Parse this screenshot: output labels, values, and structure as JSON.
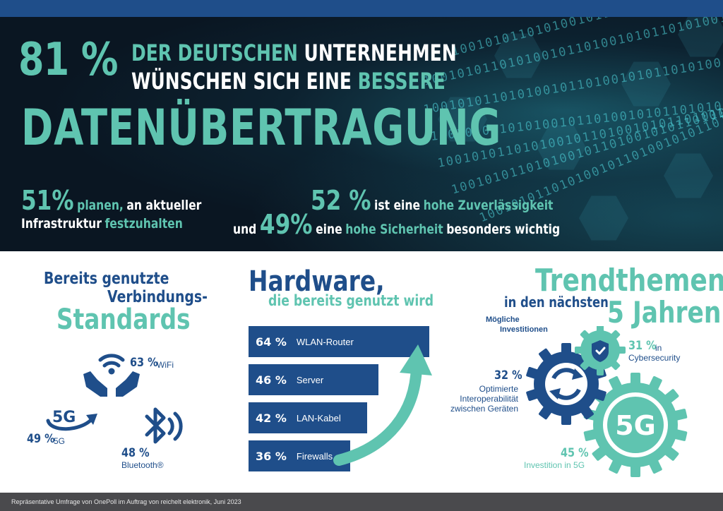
{
  "hero": {
    "big_percent": "81 %",
    "line1_a": "DER DEUTSCHEN",
    "line1_b": "UNTERNEHMEN",
    "line2_a": "WÜNSCHEN SICH EINE",
    "line2_b": "BESSERE",
    "line3": "DATENÜBERTRAGUNG",
    "binary_text": "1001010110101001011010010101101010010110100101",
    "stat_left": {
      "percent": "51%",
      "text_a": "planen,",
      "text_b": "an aktueller",
      "text_c": "Infrastruktur",
      "text_d": "festzuhalten"
    },
    "stat_right": {
      "percent_1": "52 %",
      "text_1a": "ist eine",
      "text_1b": "hohe Zuverlässigkeit",
      "prefix_2": "und",
      "percent_2": "49%",
      "text_2a": "eine",
      "text_2b": "hohe Sicherheit",
      "text_2c": "besonders wichtig"
    }
  },
  "standards": {
    "title_a": "Bereits genutzte",
    "title_b": "Verbindungs-",
    "title_c": "Standards",
    "wifi": {
      "percent": "63 %",
      "label": "WiFi"
    },
    "fiveg": {
      "icon_text": "5G",
      "percent": "49 %",
      "label": "5G"
    },
    "bluetooth": {
      "percent": "48 %",
      "label": "Bluetooth®"
    }
  },
  "hardware": {
    "title": "Hardware,",
    "subtitle": "die bereits genutzt wird",
    "bars": [
      {
        "percent": "64 %",
        "label": "WLAN-Router",
        "value": 64
      },
      {
        "percent": "46 %",
        "label": "Server",
        "value": 46
      },
      {
        "percent": "42 %",
        "label": "LAN-Kabel",
        "value": 42
      },
      {
        "percent": "36 %",
        "label": "Firewalls",
        "value": 36
      }
    ]
  },
  "trends": {
    "title": "Trendthemen",
    "sub_a": "in den nächsten",
    "sub_b": "5 Jahren",
    "small_a": "Mögliche",
    "small_b": "Investitionen",
    "cyber": {
      "percent": "31 %",
      "label_a": "in",
      "label_b": "Cybersecurity"
    },
    "interop": {
      "percent": "32 %",
      "label_a": "Optimierte",
      "label_b": "Interoperabilität",
      "label_c": "zwischen Geräten"
    },
    "fiveg": {
      "icon_text": "5G",
      "percent": "45 %",
      "label": "Investition in 5G"
    }
  },
  "footer": {
    "text": "Repräsentative Umfrage von OnePoll im Auftrag von reichelt elektronik, Juni 2023"
  },
  "colors": {
    "navy": "#1f4e8a",
    "teal": "#5fc4b0",
    "dark_bg": "#0a1622",
    "footer_bg": "#4a4a4d"
  }
}
